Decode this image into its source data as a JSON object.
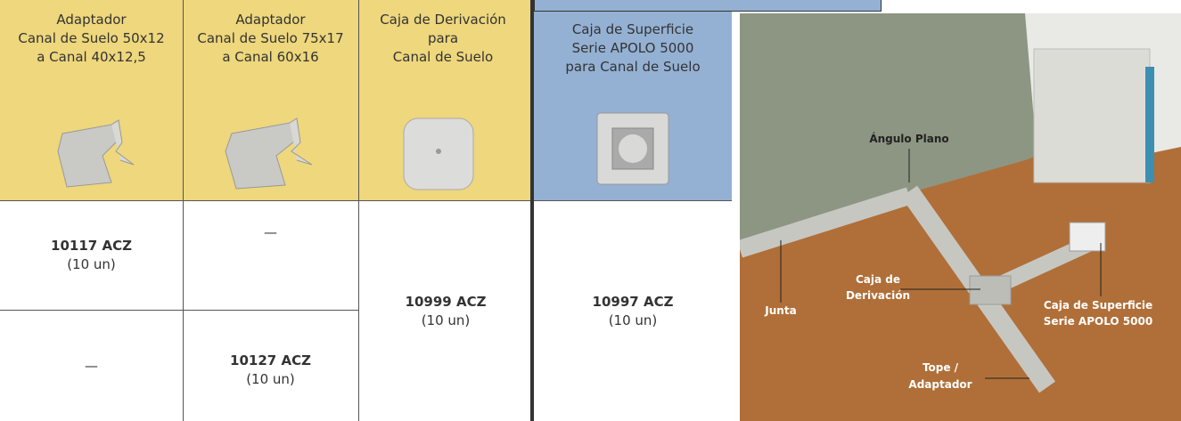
{
  "table_left": {
    "headers": [
      [
        "Adaptador",
        "Canal de Suelo 50x12",
        "a Canal 40x12,5"
      ],
      [
        "Adaptador",
        "Canal de Suelo 75x17",
        "a Canal 60x16"
      ],
      [
        "Caja de Derivación",
        "para",
        "Canal de Suelo"
      ]
    ],
    "rows": [
      [
        [
          "10117 ACZ",
          "(10 un)"
        ],
        [
          "—"
        ],
        [
          "10999 ACZ",
          "(10 un)"
        ]
      ],
      [
        [
          "—"
        ],
        [
          "10127 ACZ",
          "(10 un)"
        ]
      ]
    ]
  },
  "table_right": {
    "header": [
      "Caja de Superficie",
      "Serie APOLO 5000",
      "para Canal de Suelo"
    ],
    "cell": [
      "10997 ACZ",
      "(10 un)"
    ]
  },
  "photo_labels": {
    "angulo": [
      "Ángulo Plano"
    ],
    "derivacion": [
      "Caja de",
      "Derivación"
    ],
    "junta": [
      "Junta"
    ],
    "superficie": [
      "Caja de Superficie",
      "Serie APOLO 5000"
    ],
    "tope": [
      "Tope /",
      "Adaptador"
    ]
  }
}
